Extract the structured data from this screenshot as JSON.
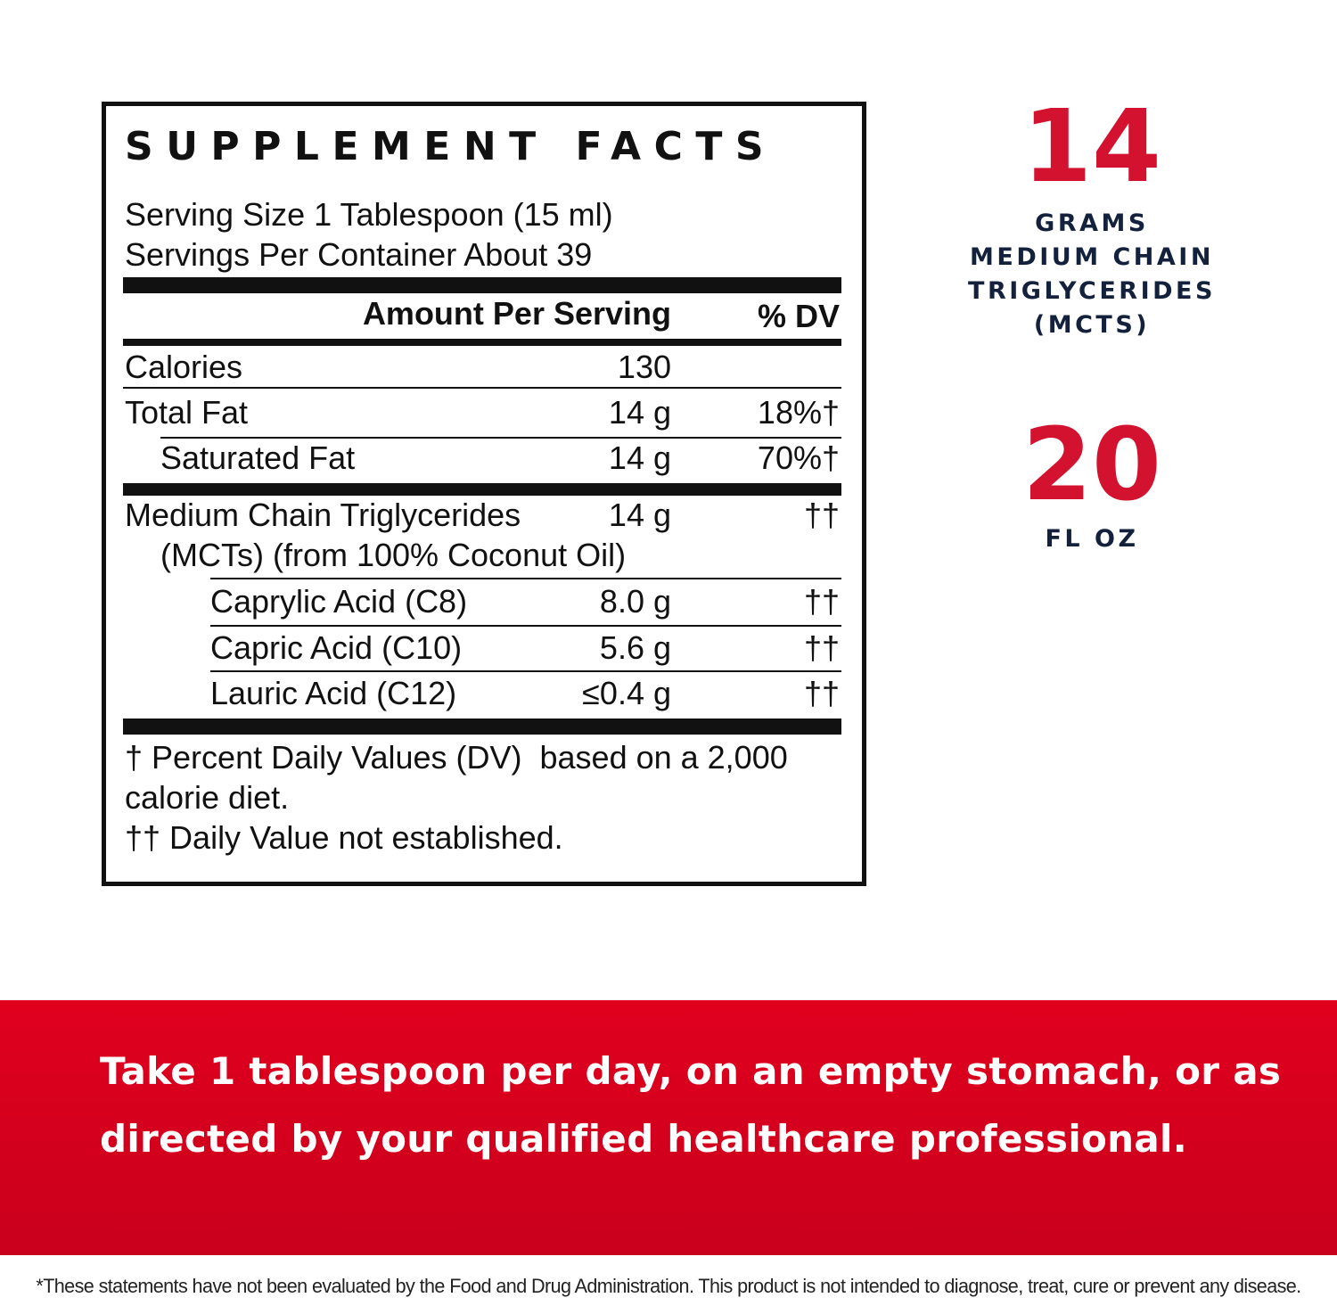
{
  "facts": {
    "title": "SUPPLEMENT FACTS",
    "serving_size": "Serving Size 1 Tablespoon (15 ml)",
    "servings_per_container": "Servings Per Container About 39",
    "header_amount": "Amount Per Serving",
    "header_dv": "% DV",
    "rows": [
      {
        "label": "Calories",
        "amount": "130",
        "dv": ""
      },
      {
        "label": "Total Fat",
        "amount": "14 g",
        "dv": "18%†"
      },
      {
        "label": "Saturated Fat",
        "amount": "14 g",
        "dv": "70%†"
      },
      {
        "label": "Medium Chain Triglycerides",
        "label2": "(MCTs) (from 100% Coconut Oil)",
        "amount": "14 g",
        "dv": "††"
      },
      {
        "label": "Caprylic Acid (C8)",
        "amount": "8.0 g",
        "dv": "††"
      },
      {
        "label": "Capric Acid (C10)",
        "amount": "5.6 g",
        "dv": "††"
      },
      {
        "label": "Lauric Acid (C12)",
        "amount": "≤0.4 g",
        "dv": "††"
      }
    ],
    "footnote_1a": "† Percent Daily Values (DV)  based on a 2,000",
    "footnote_1b": "calorie diet.",
    "footnote_2": "†† Daily Value not established."
  },
  "highlights": {
    "mct_number": "14",
    "mct_caption_1": "GRAMS",
    "mct_caption_2": "MEDIUM CHAIN",
    "mct_caption_3": "TRIGLYCERIDES",
    "mct_caption_4": "(MCTS)",
    "volume_number": "20",
    "volume_caption": "FL OZ",
    "accent_color": "#d2122e",
    "caption_color": "#13213d"
  },
  "banner": {
    "line1": "Take 1 tablespoon per day, on an empty stomach, or as",
    "line2": "directed by your qualified healthcare professional.",
    "color": "#d9001e"
  },
  "disclaimer": "*These statements have not been evaluated by the Food and Drug Administration. This product is not intended to diagnose, treat, cure or prevent any disease."
}
